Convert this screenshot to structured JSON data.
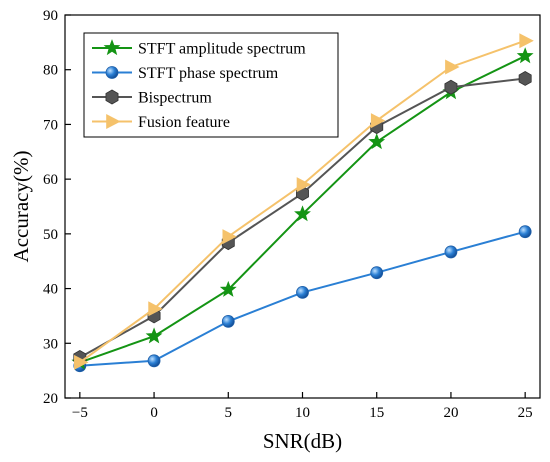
{
  "chart_data": {
    "type": "line",
    "xlabel": "SNR(dB)",
    "ylabel": "Accuracy(%)",
    "xlim": [
      -6,
      26
    ],
    "ylim": [
      20,
      90
    ],
    "xticks": [
      -5,
      0,
      5,
      10,
      15,
      20,
      25
    ],
    "yticks": [
      20,
      30,
      40,
      50,
      60,
      70,
      80,
      90
    ],
    "x": [
      -5,
      0,
      5,
      10,
      15,
      20,
      25
    ],
    "grid": false,
    "legend": "top-left",
    "series": [
      {
        "name": "STFT amplitude spectrum",
        "color": "#149414",
        "marker": "star",
        "values": [
          26.5,
          31.3,
          39.8,
          53.6,
          66.8,
          75.9,
          82.5
        ]
      },
      {
        "name": "STFT phase spectrum",
        "color": "#2a7fd4",
        "marker": "circle",
        "values": [
          25.9,
          26.8,
          34.0,
          39.3,
          42.9,
          46.7,
          50.4
        ]
      },
      {
        "name": "Bispectrum",
        "color": "#555555",
        "marker": "hexagon",
        "values": [
          27.4,
          35.0,
          48.4,
          57.4,
          69.6,
          76.8,
          78.4
        ]
      },
      {
        "name": "Fusion feature",
        "color": "#f5c26b",
        "marker": "triangle-right",
        "values": [
          26.5,
          36.3,
          49.5,
          59.0,
          70.7,
          80.5,
          85.3
        ]
      }
    ]
  }
}
